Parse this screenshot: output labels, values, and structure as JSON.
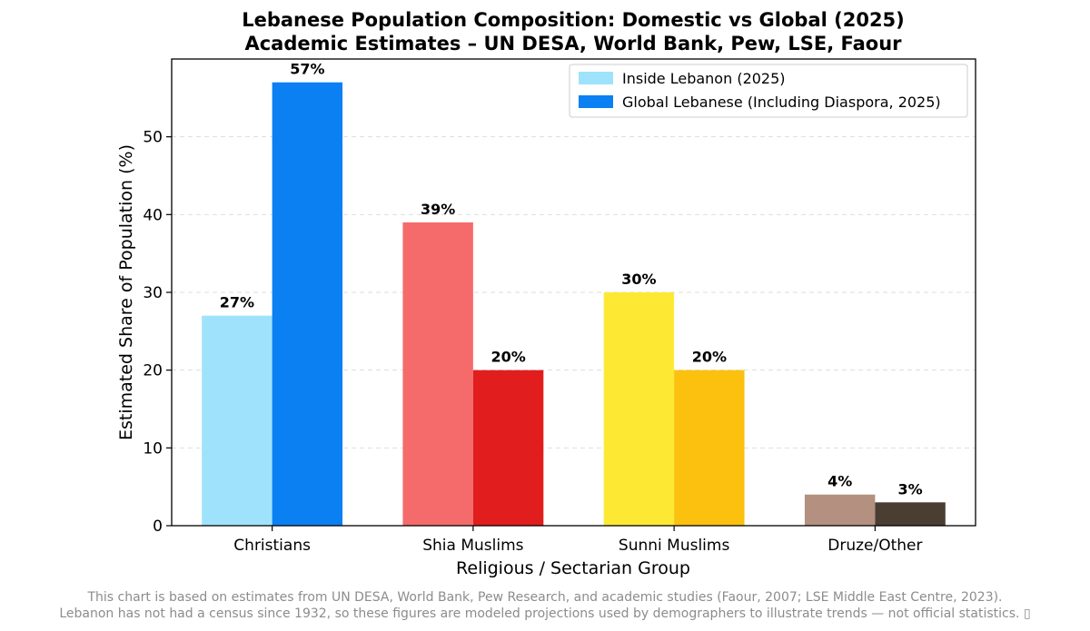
{
  "chart_data": {
    "type": "bar",
    "title": "Lebanese Population Composition: Domestic vs Global (2025)",
    "subtitle": "Academic Estimates – UN DESA, World Bank, Pew, LSE, Faour",
    "xlabel": "Religious / Sectarian Group",
    "ylabel": "Estimated Share of Population (%)",
    "ylim": [
      0,
      60
    ],
    "yticks": [
      0,
      10,
      20,
      30,
      40,
      50
    ],
    "grid": "horizontal dashed",
    "legend_position": "top-right",
    "categories": [
      "Christians",
      "Shia Muslims",
      "Sunni Muslims",
      "Druze/Other"
    ],
    "series": [
      {
        "name": "Inside Lebanon (2025)",
        "values": [
          27,
          39,
          30,
          4
        ],
        "data_labels": [
          "27%",
          "39%",
          "30%",
          "4%"
        ],
        "colors": [
          "#9ee3fb",
          "#f56b6b",
          "#fde934",
          "#b3907f"
        ],
        "legend_color": "#9ee3fb"
      },
      {
        "name": "Global Lebanese (Including Diaspora, 2025)",
        "values": [
          57,
          20,
          20,
          3
        ],
        "data_labels": [
          "57%",
          "20%",
          "20%",
          "3%"
        ],
        "colors": [
          "#0a80f2",
          "#e11d1d",
          "#fcc00e",
          "#4a3d32"
        ],
        "legend_color": "#0a80f2"
      }
    ]
  },
  "footnote": {
    "line1": "This chart is based on estimates from UN DESA, World Bank, Pew Research, and academic studies (Faour, 2007; LSE Middle East Centre, 2023).",
    "line2": "Lebanon has not had a census since 1932, so these figures are modeled projections used by demographers to illustrate trends — not official statistics. ▯"
  }
}
